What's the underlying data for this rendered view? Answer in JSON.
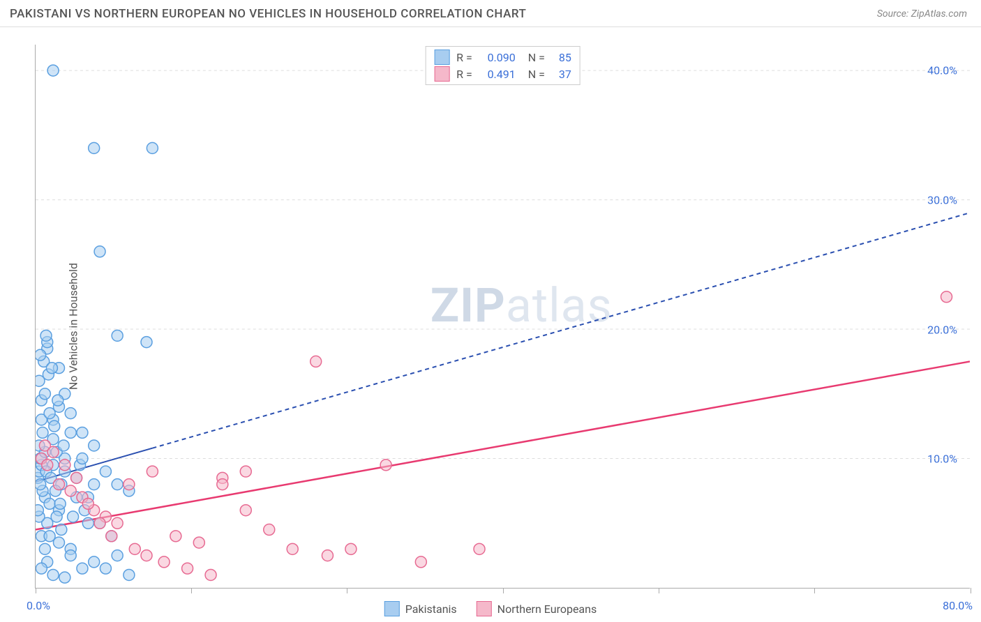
{
  "header": {
    "title": "PAKISTANI VS NORTHERN EUROPEAN NO VEHICLES IN HOUSEHOLD CORRELATION CHART",
    "source": "Source: ZipAtlas.com"
  },
  "chart": {
    "type": "scatter",
    "ylabel": "No Vehicles in Household",
    "xlim": [
      0,
      80
    ],
    "ylim": [
      0,
      42
    ],
    "xtick_positions": [
      0,
      13.3,
      26.6,
      40,
      53.3,
      66.6,
      80
    ],
    "ytick_positions": [
      10,
      20,
      30,
      40
    ],
    "ytick_labels": [
      "10.0%",
      "20.0%",
      "30.0%",
      "40.0%"
    ],
    "x_start_label": "0.0%",
    "x_end_label": "80.0%",
    "background_color": "#ffffff",
    "grid_color": "#dddddd",
    "axis_color": "#aaaaaa",
    "marker_radius": 8,
    "marker_stroke_width": 1.5,
    "series": [
      {
        "name": "Pakistanis",
        "fill": "#a8cdf0",
        "stroke": "#5a9fe0",
        "fill_opacity": 0.55,
        "trendline": {
          "x1": 0,
          "y1": 8.2,
          "x2": 80,
          "y2": 29,
          "color": "#2a4fb0",
          "dash": "6,5",
          "width": 2,
          "solid_until_x": 10
        },
        "R": "0.090",
        "N": "85",
        "points": [
          [
            0.2,
            8.5
          ],
          [
            0.3,
            9
          ],
          [
            0.5,
            9.5
          ],
          [
            0.4,
            10
          ],
          [
            0.8,
            10.5
          ],
          [
            1.5,
            40
          ],
          [
            5,
            34
          ],
          [
            10,
            34
          ],
          [
            1,
            18.5
          ],
          [
            2,
            14
          ],
          [
            1.5,
            13
          ],
          [
            0.5,
            14.5
          ],
          [
            2.5,
            15
          ],
          [
            5.5,
            26
          ],
          [
            7,
            19.5
          ],
          [
            9.5,
            19
          ],
          [
            3,
            13.5
          ],
          [
            4,
            12
          ],
          [
            5,
            11
          ],
          [
            6,
            9
          ],
          [
            7,
            8
          ],
          [
            8,
            7.5
          ],
          [
            3.5,
            8.5
          ],
          [
            4.5,
            7
          ],
          [
            2,
            6
          ],
          [
            1,
            5
          ],
          [
            0.5,
            4
          ],
          [
            3,
            3
          ],
          [
            5,
            2
          ],
          [
            6,
            1.5
          ],
          [
            7,
            2.5
          ],
          [
            8,
            1
          ],
          [
            1.5,
            9.5
          ],
          [
            2.5,
            10
          ],
          [
            0.8,
            7
          ],
          [
            1.2,
            6.5
          ],
          [
            0.3,
            11
          ],
          [
            0.6,
            12
          ],
          [
            1.8,
            10.5
          ],
          [
            2.2,
            8
          ],
          [
            3.8,
            9.5
          ],
          [
            4.2,
            6
          ],
          [
            5.5,
            5
          ],
          [
            6.5,
            4
          ],
          [
            2,
            3.5
          ],
          [
            3,
            2.5
          ],
          [
            4,
            1.5
          ],
          [
            1,
            2
          ],
          [
            0.5,
            1.5
          ],
          [
            1.5,
            1
          ],
          [
            2.5,
            0.8
          ],
          [
            0.8,
            3
          ],
          [
            1.2,
            4
          ],
          [
            0.3,
            5.5
          ],
          [
            0.6,
            7.5
          ],
          [
            1.8,
            5.5
          ],
          [
            2.2,
            4.5
          ],
          [
            3.2,
            5.5
          ],
          [
            0.2,
            6
          ],
          [
            0.4,
            8
          ],
          [
            0.9,
            9
          ],
          [
            1.3,
            8.5
          ],
          [
            1.7,
            7.5
          ],
          [
            2.1,
            6.5
          ],
          [
            1,
            19
          ],
          [
            2,
            17
          ],
          [
            3,
            12
          ],
          [
            4,
            10
          ],
          [
            5,
            8
          ],
          [
            0.5,
            13
          ],
          [
            1.5,
            11.5
          ],
          [
            2.5,
            9
          ],
          [
            3.5,
            7
          ],
          [
            4.5,
            5
          ],
          [
            0.8,
            15
          ],
          [
            1.2,
            13.5
          ],
          [
            1.6,
            12.5
          ],
          [
            2.4,
            11
          ],
          [
            0.3,
            16
          ],
          [
            0.7,
            17.5
          ],
          [
            1.1,
            16.5
          ],
          [
            1.9,
            14.5
          ],
          [
            0.4,
            18
          ],
          [
            0.9,
            19.5
          ],
          [
            1.4,
            17
          ]
        ]
      },
      {
        "name": "Northern Europeans",
        "fill": "#f5b8ca",
        "stroke": "#e76a92",
        "fill_opacity": 0.55,
        "trendline": {
          "x1": 0,
          "y1": 4.5,
          "x2": 80,
          "y2": 17.5,
          "color": "#e83a70",
          "dash": "none",
          "width": 2.5,
          "solid_until_x": 80
        },
        "R": "0.491",
        "N": "37",
        "points": [
          [
            0.5,
            10
          ],
          [
            1,
            9.5
          ],
          [
            2,
            8
          ],
          [
            3,
            7.5
          ],
          [
            4,
            7
          ],
          [
            5,
            6
          ],
          [
            6,
            5.5
          ],
          [
            7,
            5
          ],
          [
            8,
            8
          ],
          [
            10,
            9
          ],
          [
            12,
            4
          ],
          [
            14,
            3.5
          ],
          [
            16,
            8.5
          ],
          [
            18,
            9
          ],
          [
            20,
            4.5
          ],
          [
            22,
            3
          ],
          [
            24,
            17.5
          ],
          [
            16,
            8
          ],
          [
            18,
            6
          ],
          [
            25,
            2.5
          ],
          [
            27,
            3
          ],
          [
            30,
            9.5
          ],
          [
            33,
            2
          ],
          [
            38,
            3
          ],
          [
            78,
            22.5
          ],
          [
            0.8,
            11
          ],
          [
            1.5,
            10.5
          ],
          [
            2.5,
            9.5
          ],
          [
            3.5,
            8.5
          ],
          [
            4.5,
            6.5
          ],
          [
            5.5,
            5
          ],
          [
            6.5,
            4
          ],
          [
            8.5,
            3
          ],
          [
            9.5,
            2.5
          ],
          [
            11,
            2
          ],
          [
            13,
            1.5
          ],
          [
            15,
            1
          ]
        ]
      }
    ],
    "legend_bottom": [
      {
        "label": "Pakistanis",
        "fill": "#a8cdf0",
        "stroke": "#5a9fe0"
      },
      {
        "label": "Northern Europeans",
        "fill": "#f5b8ca",
        "stroke": "#e76a92"
      }
    ],
    "watermark": {
      "zip": "ZIP",
      "atlas": "atlas"
    }
  }
}
